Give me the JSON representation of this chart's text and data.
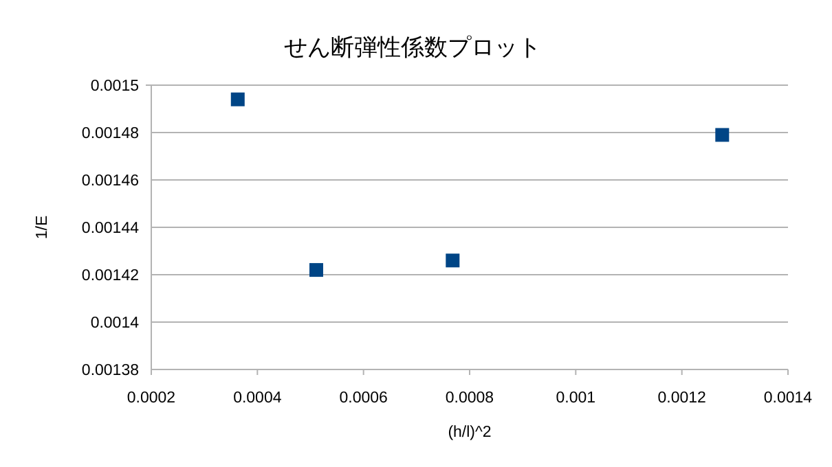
{
  "chart_data": {
    "type": "scatter",
    "title": "せん断弾性係数プロット",
    "xlabel": "(h/l)^2",
    "ylabel": "1/E",
    "x": [
      0.000363,
      0.000511,
      0.000768,
      0.001276
    ],
    "series": [
      {
        "color": "#004586",
        "values": [
          0.001494,
          0.001422,
          0.001426,
          0.001479
        ]
      }
    ],
    "xlim": [
      0.0002,
      0.0014
    ],
    "xticks": [
      0.0002,
      0.0004,
      0.0006,
      0.0008,
      0.001,
      0.0012,
      0.0014
    ],
    "ylim": [
      0.00138,
      0.0015
    ],
    "yticks": [
      0.00138,
      0.0014,
      0.00142,
      0.00144,
      0.00146,
      0.00148,
      0.0015
    ],
    "grid": "y",
    "marker": "square"
  }
}
